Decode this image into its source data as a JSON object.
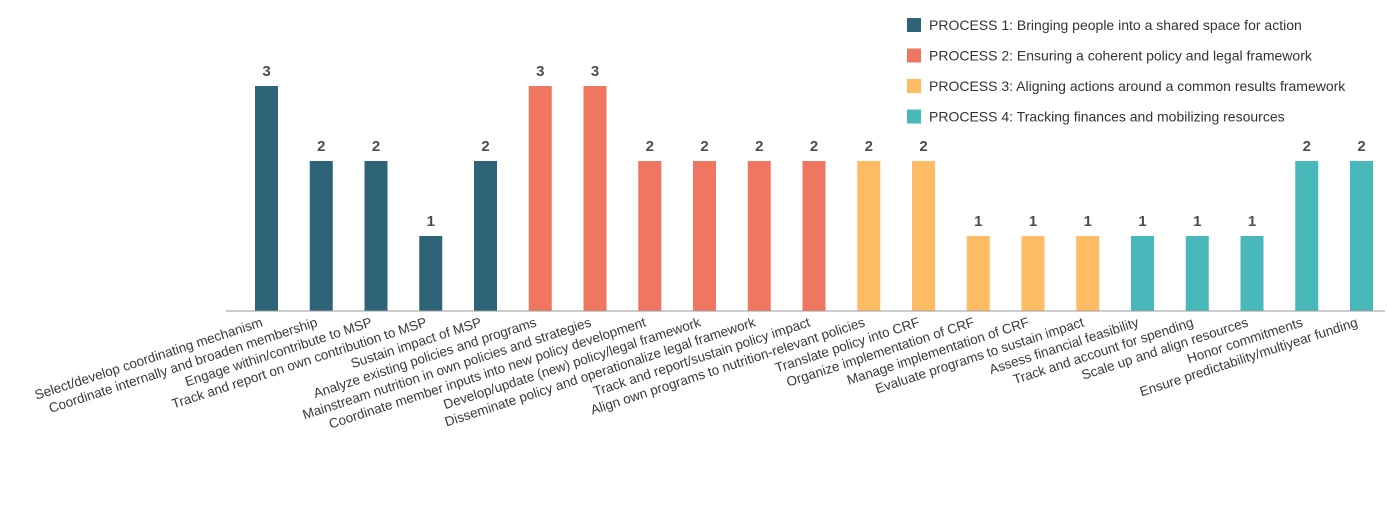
{
  "chart_data": {
    "type": "bar",
    "title": "",
    "xlabel": "",
    "ylabel": "",
    "ylim": [
      0,
      3
    ],
    "grid": false,
    "legend_position": "top-right",
    "series": [
      {
        "name": "PROCESS 1: Bringing people into a shared space for action",
        "color": "#2e6478"
      },
      {
        "name": "PROCESS 2: Ensuring a coherent policy and legal framework",
        "color": "#ef7660"
      },
      {
        "name": "PROCESS 3: Aligning actions around a common results framework",
        "color": "#fdbb63"
      },
      {
        "name": "PROCESS 4: Tracking finances and mobilizing resources",
        "color": "#49b8bb"
      }
    ],
    "categories": [
      "Select/develop coordinating mechanism",
      "Coordinate internally and broaden membership",
      "Engage within/contribute to MSP",
      "Track and report on own contribution to MSP",
      "Sustain impact of MSP",
      "Analyze existing policies and programs",
      "Mainstream nutrition in own policies and strategies",
      "Coordinate member inputs into new policy development",
      "Develop/update (new) policy/legal framework",
      "Disseminate policy and operationalize legal framework",
      "Track and report/sustain policy impact",
      "Align own programs to nutrition-relevant policies",
      "Translate policy into CRF",
      "Organize implementation of CRF",
      "Manage implementation of CRF",
      "Evaluate programs to sustain impact",
      "Assess financial feasibility",
      "Track and account for spending",
      "Scale up and align resources",
      "Honor commitments",
      "Ensure predictability/multiyear funding"
    ],
    "values": [
      3,
      2,
      2,
      1,
      2,
      3,
      3,
      2,
      2,
      2,
      2,
      2,
      2,
      1,
      1,
      1,
      1,
      1,
      1,
      2,
      2
    ],
    "value_labels": [
      "3",
      "2",
      "2",
      "1",
      "2",
      "3",
      "3",
      "2",
      "2",
      "2",
      "2",
      "2",
      "2",
      "1",
      "1",
      "1",
      "1",
      "1",
      "1",
      "2",
      "2"
    ],
    "series_index": [
      0,
      0,
      0,
      0,
      0,
      1,
      1,
      1,
      1,
      1,
      1,
      2,
      2,
      2,
      2,
      2,
      3,
      3,
      3,
      3,
      3
    ]
  }
}
